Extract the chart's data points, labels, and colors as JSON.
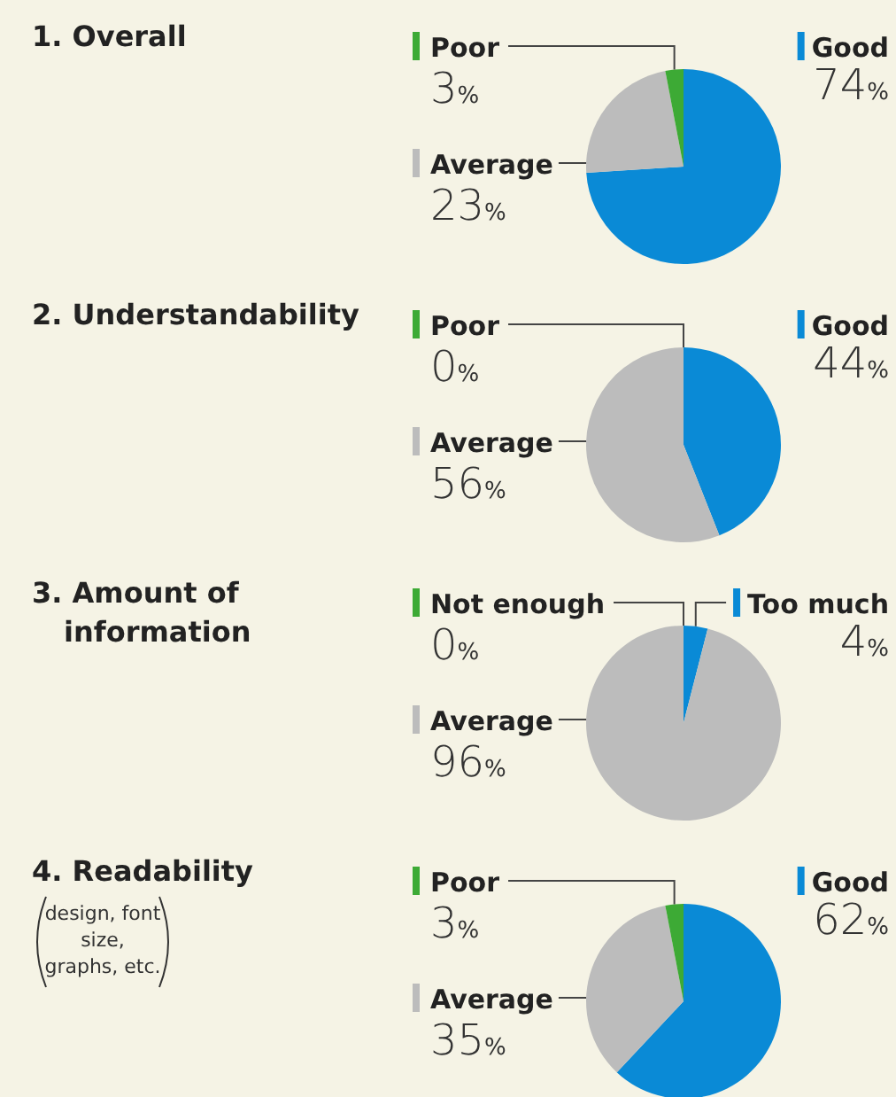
{
  "chart_data": [
    {
      "type": "pie",
      "title": "1. Overall",
      "categories": [
        "Good",
        "Average",
        "Poor"
      ],
      "values": [
        74,
        23,
        3
      ],
      "colors": [
        "#0a8ad6",
        "#bcbcbc",
        "#3daa35"
      ],
      "value_labels": [
        "74%",
        "23%",
        "3%"
      ],
      "legend": "left"
    },
    {
      "type": "pie",
      "title": "2. Understandability",
      "categories": [
        "Good",
        "Average",
        "Poor"
      ],
      "values": [
        44,
        56,
        0
      ],
      "colors": [
        "#0a8ad6",
        "#bcbcbc",
        "#3daa35"
      ],
      "value_labels": [
        "44%",
        "56%",
        "0%"
      ],
      "legend": "left"
    },
    {
      "type": "pie",
      "title": "3. Amount of information",
      "categories": [
        "Too much",
        "Average",
        "Not enough"
      ],
      "values": [
        4,
        96,
        0
      ],
      "colors": [
        "#0a8ad6",
        "#bcbcbc",
        "#3daa35"
      ],
      "value_labels": [
        "4%",
        "96%",
        "0%"
      ],
      "legend": "left"
    },
    {
      "type": "pie",
      "title": "4. Readability",
      "subtitle": "design, font size, graphs, etc.",
      "categories": [
        "Good",
        "Average",
        "Poor"
      ],
      "values": [
        62,
        35,
        3
      ],
      "colors": [
        "#0a8ad6",
        "#bcbcbc",
        "#3daa35"
      ],
      "value_labels": [
        "62%",
        "35%",
        "3%"
      ],
      "legend": "left"
    }
  ]
}
